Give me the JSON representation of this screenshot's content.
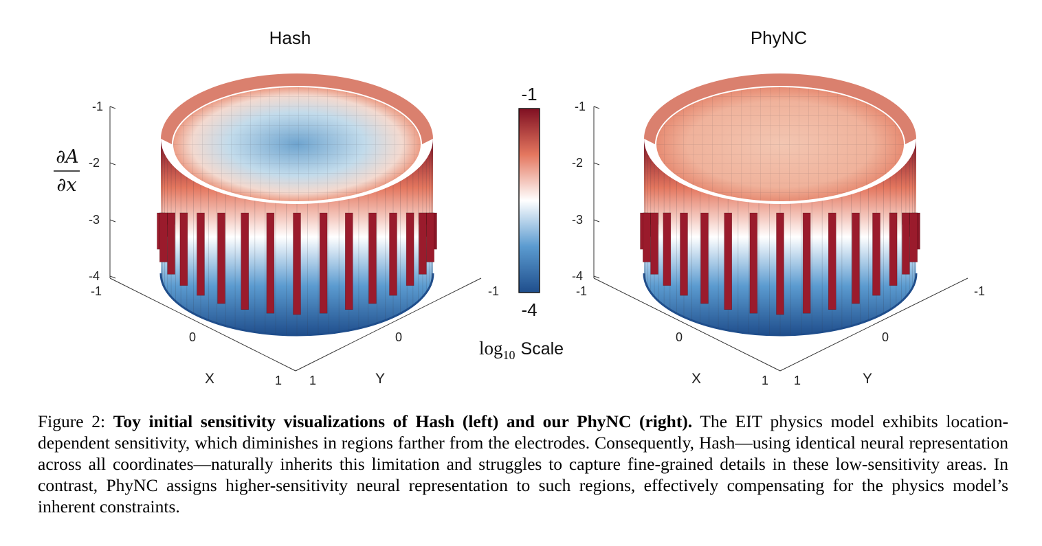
{
  "chart_data": [
    {
      "type": "3d-bar",
      "title": "Hash",
      "zlabel": "∂A/∂x",
      "zticks": [
        "-1",
        "-2",
        "-3",
        "-4"
      ],
      "zlim": [
        -4,
        -1
      ],
      "xlabel": "X",
      "xticks": [
        "-1",
        "0",
        "1"
      ],
      "ylabel": "Y",
      "yticks": [
        "1",
        "0",
        "-1"
      ],
      "electrodes": 32,
      "boundary_peak_log10": -1,
      "center_log10": -3.0,
      "colormap": "diverging blue-white-red"
    },
    {
      "type": "3d-bar",
      "title": "PhyNC",
      "zticks": [
        "-1",
        "-2",
        "-3",
        "-4"
      ],
      "zlim": [
        -4,
        -1
      ],
      "xlabel": "X",
      "xticks": [
        "-1",
        "0",
        "1"
      ],
      "ylabel": "Y",
      "yticks": [
        "1",
        "0",
        "-1"
      ],
      "electrodes": 32,
      "boundary_peak_log10": -1,
      "center_log10": -1.8,
      "colormap": "diverging blue-white-red"
    }
  ],
  "colorbar": {
    "max_label": "-1",
    "min_label": "-4",
    "scale_log": "log",
    "scale_sub": "10",
    "scale_word": "Scale",
    "colors": [
      "#1f4e8c",
      "#5b9bd0",
      "#ffffff",
      "#e4775f",
      "#7f0f22"
    ]
  },
  "caption": {
    "figure_label": "Figure 2:",
    "bold_title": "Toy initial sensitivity visualizations of Hash (left) and our PhyNC (right).",
    "body": "The EIT physics model exhibits location-dependent sensitivity, which diminishes in regions farther from the electrodes. Consequently, Hash—using identical neural representation across all coordinates—naturally inherits this limitation and struggles to capture fine-grained details in these low-sensitivity areas. In contrast, PhyNC assigns higher-sensitivity neural representation to such regions, effectively compensating for the physics model’s inherent constraints."
  }
}
